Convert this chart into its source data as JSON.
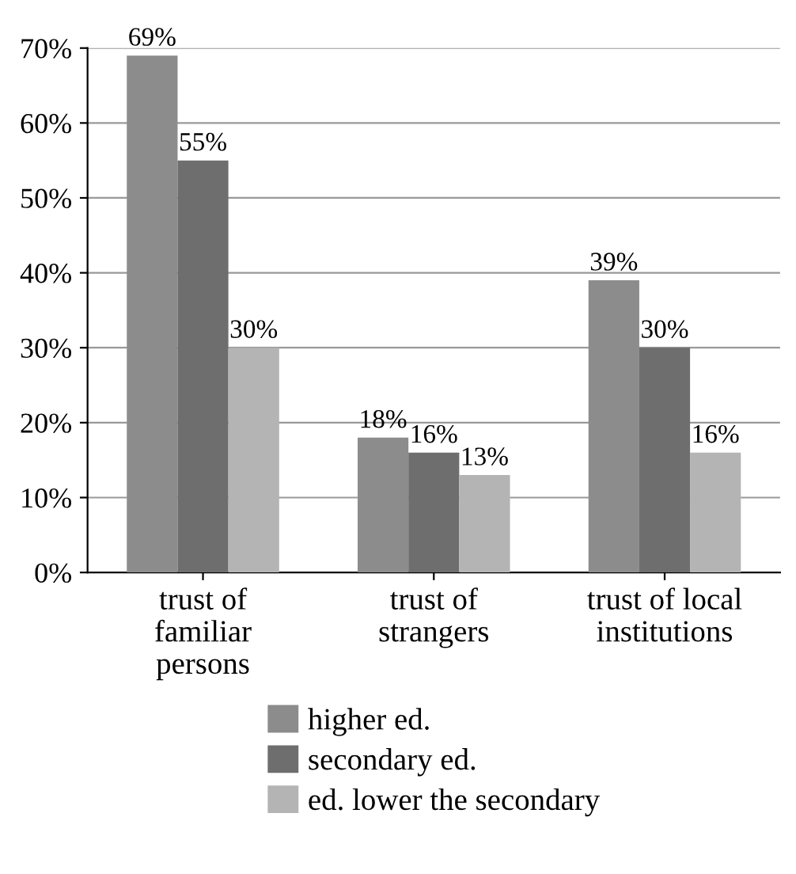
{
  "chart_data": {
    "type": "bar",
    "categories": [
      "trust of\nfamiliar\npersons",
      "trust of\nstrangers",
      "trust of local\ninstitutions"
    ],
    "series": [
      {
        "name": "higher ed.",
        "color": "#8c8c8c",
        "values": [
          69,
          18,
          39
        ],
        "value_labels": [
          "69%",
          "18%",
          "39%"
        ]
      },
      {
        "name": "secondary ed.",
        "color": "#6e6e6e",
        "values": [
          55,
          16,
          30
        ],
        "value_labels": [
          "55%",
          "16%",
          "30%"
        ]
      },
      {
        "name": "ed. lower the secondary",
        "color": "#b4b4b4",
        "values": [
          30,
          13,
          16
        ],
        "value_labels": [
          "30%",
          "13%",
          "16%"
        ]
      }
    ],
    "ylim": [
      0,
      70
    ],
    "yticks": [
      {
        "value": 0,
        "label": "0%"
      },
      {
        "value": 10,
        "label": "10%"
      },
      {
        "value": 20,
        "label": "20%"
      },
      {
        "value": 30,
        "label": "30%"
      },
      {
        "value": 40,
        "label": "40%"
      },
      {
        "value": 50,
        "label": "50%"
      },
      {
        "value": 60,
        "label": "60%"
      },
      {
        "value": 70,
        "label": "70%"
      }
    ],
    "grid": "y",
    "legend": "bottom"
  }
}
